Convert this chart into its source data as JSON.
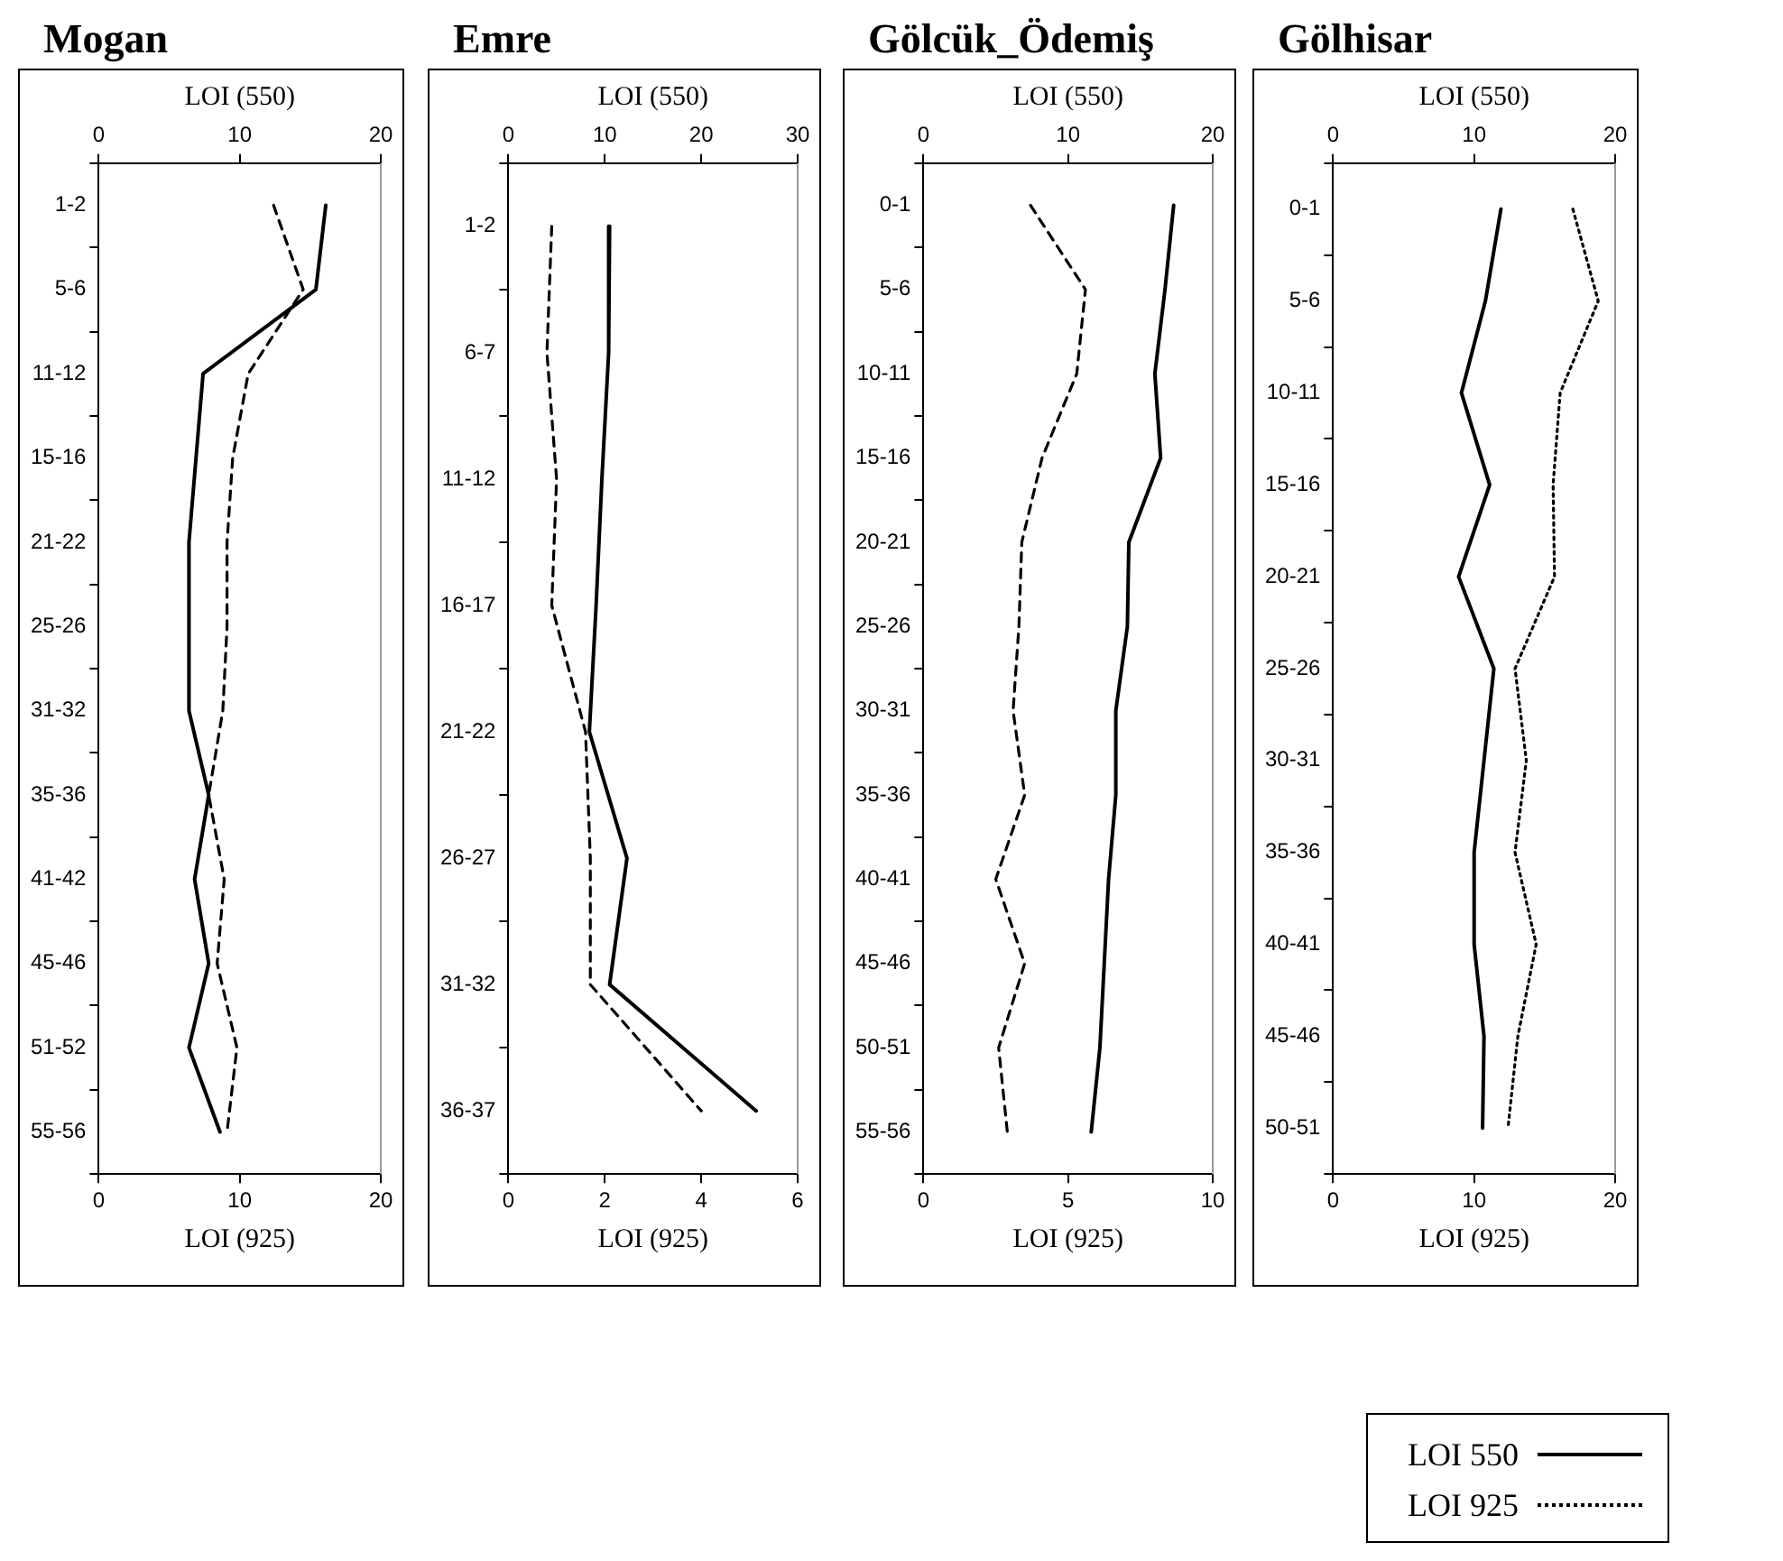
{
  "chart_data": [
    {
      "type": "line",
      "title": "Mogan",
      "orientation": "horizontal",
      "x2label": "LOI (550)",
      "xlabel": "LOI (925)",
      "marker": "none",
      "grid": false,
      "categories": [
        "1-2",
        "5-6",
        "11-12",
        "15-16",
        "21-22",
        "25-26",
        "31-32",
        "35-36",
        "41-42",
        "45-46",
        "51-52",
        "55-56"
      ],
      "x2lim": [
        0,
        20
      ],
      "x2ticks": [
        0,
        10,
        20
      ],
      "xlim": [
        0,
        20
      ],
      "xticks": [
        0,
        10,
        20
      ],
      "series": [
        {
          "color": "#000000",
          "axis": "x2",
          "line_style": "solid",
          "values": [
            16.1,
            15.4,
            7.4,
            6.9,
            6.4,
            6.4,
            6.4,
            7.8,
            6.8,
            7.8,
            6.4,
            8.6
          ]
        },
        {
          "color": "#000000",
          "line_style": "dashed",
          "values": [
            12.4,
            14.5,
            10.6,
            9.5,
            9.1,
            9.1,
            8.8,
            7.8,
            8.9,
            8.4,
            9.8,
            9.1
          ]
        }
      ]
    },
    {
      "type": "line",
      "title": "Emre",
      "orientation": "horizontal",
      "x2label": "LOI (550)",
      "xlabel": "LOI (925)",
      "marker": "none",
      "grid": false,
      "categories": [
        "1-2",
        "6-7",
        "11-12",
        "16-17",
        "21-22",
        "26-27",
        "31-32",
        "36-37"
      ],
      "x2lim": [
        0,
        30
      ],
      "x2ticks": [
        0,
        10,
        20,
        30
      ],
      "xlim": [
        0,
        6
      ],
      "xticks": [
        0,
        2,
        4,
        6
      ],
      "series": [
        {
          "color": "#000000",
          "axis": "x2",
          "line_style": "solid",
          "values": [
            10.5,
            10.4,
            9.7,
            9.1,
            8.4,
            12.3,
            10.5,
            25.7
          ]
        },
        {
          "color": "#000000",
          "line_style": "dashed",
          "values": [
            0.9,
            0.8,
            1.0,
            0.9,
            1.6,
            1.7,
            1.7,
            4.0
          ]
        }
      ]
    },
    {
      "type": "line",
      "title": "Gölcük_Ödemiş",
      "orientation": "horizontal",
      "x2label": "LOI (550)",
      "xlabel": "LOI (925)",
      "marker": "none",
      "grid": false,
      "categories": [
        "0-1",
        "5-6",
        "10-11",
        "15-16",
        "20-21",
        "25-26",
        "30-31",
        "35-36",
        "40-41",
        "45-46",
        "50-51",
        "55-56"
      ],
      "x2lim": [
        0,
        20
      ],
      "x2ticks": [
        0,
        10,
        20
      ],
      "xlim": [
        0,
        10
      ],
      "xticks": [
        0,
        5,
        10
      ],
      "series": [
        {
          "color": "#000000",
          "axis": "x2",
          "line_style": "solid",
          "values": [
            17.3,
            16.7,
            16.0,
            16.4,
            14.2,
            14.1,
            13.3,
            13.3,
            12.8,
            12.5,
            12.2,
            11.6
          ]
        },
        {
          "color": "#000000",
          "line_style": "dashed",
          "values": [
            3.7,
            5.6,
            5.3,
            4.1,
            3.4,
            3.3,
            3.1,
            3.5,
            2.5,
            3.5,
            2.6,
            2.9
          ]
        }
      ]
    },
    {
      "type": "line",
      "title": "Gölhisar",
      "orientation": "horizontal",
      "x2label": "LOI (550)",
      "xlabel": "LOI (925)",
      "marker": "none",
      "grid": false,
      "legend": "bottom right",
      "categories": [
        "0-1",
        "5-6",
        "10-11",
        "15-16",
        "20-21",
        "25-26",
        "30-31",
        "35-36",
        "40-41",
        "45-46",
        "50-51"
      ],
      "x2lim": [
        0,
        20
      ],
      "x2ticks": [
        0,
        10,
        20
      ],
      "xlim": [
        0,
        20
      ],
      "xticks": [
        0,
        10,
        20
      ],
      "series": [
        {
          "name": "LOI 550",
          "color": "#000000",
          "axis": "x2",
          "line_style": "solid",
          "values": [
            11.9,
            10.8,
            9.1,
            11.1,
            8.9,
            11.4,
            10.7,
            10.0,
            10.0,
            10.7,
            10.6
          ]
        },
        {
          "name": "LOI 925",
          "color": "#000000",
          "line_style": "dotted",
          "values": [
            17.0,
            18.8,
            16.1,
            15.6,
            15.7,
            12.9,
            13.7,
            12.9,
            14.4,
            13.1,
            12.4
          ]
        }
      ]
    }
  ]
}
